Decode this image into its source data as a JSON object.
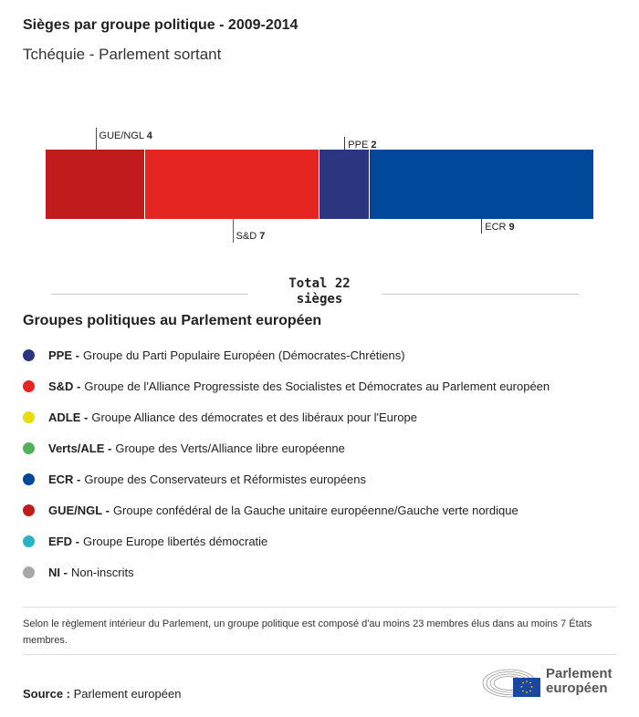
{
  "title": "Sièges par groupe politique - 2009-2014",
  "subtitle": "Tchéquie - Parlement sortant",
  "chart_data": {
    "type": "bar",
    "orientation": "horizontal-stacked",
    "categories": [
      "GUE/NGL",
      "S&D",
      "PPE",
      "ECR"
    ],
    "values": [
      4,
      7,
      2,
      9
    ],
    "colors": [
      "#c01b1d",
      "#e42522",
      "#2b3580",
      "#00489a"
    ],
    "label_positions": [
      "top",
      "bottom",
      "top",
      "bottom"
    ],
    "total_label": "Total 22 sièges"
  },
  "legend": {
    "title": "Groupes politiques au Parlement européen",
    "items": [
      {
        "abbr": "PPE -",
        "name": "Groupe du Parti Populaire Européen (Démocrates-Chrétiens)",
        "color": "#2b3580"
      },
      {
        "abbr": "S&D -",
        "name": "Groupe de l'Alliance Progressiste des Socialistes et Démocrates au Parlement européen",
        "color": "#e42522"
      },
      {
        "abbr": "ADLE -",
        "name": "Groupe Alliance des démocrates et des libéraux pour l'Europe",
        "color": "#e8dc0a"
      },
      {
        "abbr": "Verts/ALE -",
        "name": "Groupe des Verts/Alliance libre européenne",
        "color": "#55b05c"
      },
      {
        "abbr": "ECR -",
        "name": "Groupe des Conservateurs et Réformistes européens",
        "color": "#00489a"
      },
      {
        "abbr": "GUE/NGL -",
        "name": "Groupe confédéral de la Gauche unitaire européenne/Gauche verte nordique",
        "color": "#c01b1d"
      },
      {
        "abbr": "EFD -",
        "name": "Groupe Europe libertés démocratie",
        "color": "#25b4c4"
      },
      {
        "abbr": "NI -",
        "name": "Non-inscrits",
        "color": "#a8a8a8"
      }
    ]
  },
  "note": "Selon le règlement intérieur du Parlement, un groupe politique est composé d'au moins 23 membres élus dans au moins 7 États membres.",
  "source": {
    "label": "Source :",
    "value": "Parlement européen"
  },
  "logo": {
    "text1": "Parlement",
    "text2": "européen"
  }
}
